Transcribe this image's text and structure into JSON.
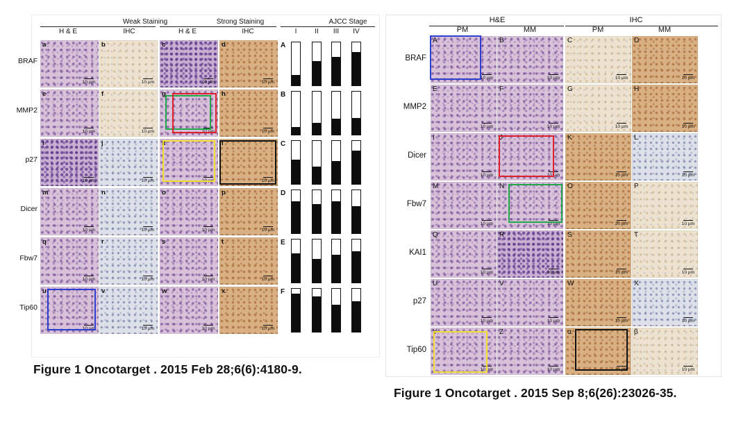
{
  "left_figure": {
    "group_headers": [
      "Weak Staining",
      "Strong Staining",
      "AJCC Stage"
    ],
    "sub_headers": [
      "H & E",
      "IHC",
      "H & E",
      "IHC"
    ],
    "stage_headers": [
      "I",
      "II",
      "III",
      "IV"
    ],
    "rows": [
      {
        "label": "BRAF",
        "letters": [
          "a",
          "b",
          "c",
          "d"
        ],
        "bar_letter": "A"
      },
      {
        "label": "MMP2",
        "letters": [
          "e",
          "f",
          "g",
          "h"
        ],
        "bar_letter": "B"
      },
      {
        "label": "p27",
        "letters": [
          "i",
          "j",
          "k",
          "l"
        ],
        "bar_letter": "C"
      },
      {
        "label": "Dicer",
        "letters": [
          "m",
          "n",
          "o",
          "p"
        ],
        "bar_letter": "D"
      },
      {
        "label": "Fbw7",
        "letters": [
          "q",
          "r",
          "s",
          "t"
        ],
        "bar_letter": "E"
      },
      {
        "label": "Tip60",
        "letters": [
          "u",
          "v",
          "w",
          "x"
        ],
        "bar_letter": "F"
      }
    ],
    "scale_label": "10 µm",
    "caption": "Figure 1 Oncotarget . 2015 Feb 28;6(6):4180-9."
  },
  "bar_data": {
    "type": "bar",
    "categories": [
      "I",
      "II",
      "III",
      "IV"
    ],
    "series": [
      {
        "name": "A",
        "values": [
          0.24,
          0.57,
          0.66,
          0.78
        ]
      },
      {
        "name": "B",
        "values": [
          0.18,
          0.28,
          0.37,
          0.38
        ]
      },
      {
        "name": "C",
        "values": [
          0.57,
          0.41,
          0.54,
          0.77
        ]
      },
      {
        "name": "D",
        "values": [
          0.74,
          0.68,
          0.74,
          0.63
        ]
      },
      {
        "name": "E",
        "values": [
          0.68,
          0.55,
          0.65,
          0.73
        ]
      },
      {
        "name": "F",
        "values": [
          0.88,
          0.82,
          0.63,
          0.71
        ]
      }
    ],
    "ylim": [
      0,
      1
    ]
  },
  "right_figure": {
    "group_headers": [
      "H&E",
      "IHC"
    ],
    "sub_headers": [
      "PM",
      "MM",
      "PM",
      "MM"
    ],
    "rows": [
      {
        "label": "BRAF",
        "letters": [
          "A",
          "B",
          "C",
          "D"
        ]
      },
      {
        "label": "MMP2",
        "letters": [
          "E",
          "F",
          "G",
          "H"
        ]
      },
      {
        "label": "Dicer",
        "letters": [
          "I",
          "J",
          "K",
          "L"
        ]
      },
      {
        "label": "Fbw7",
        "letters": [
          "M",
          "N",
          "O",
          "P"
        ]
      },
      {
        "label": "KAI1",
        "letters": [
          "Q",
          "R",
          "S",
          "T"
        ]
      },
      {
        "label": "p27",
        "letters": [
          "U",
          "V",
          "W",
          "X"
        ]
      },
      {
        "label": "Tip60",
        "letters": [
          "Y",
          "Z",
          "α",
          "β"
        ]
      }
    ],
    "scale_label": "10 µm",
    "scale_label_alt": "20 µm",
    "caption": "Figure 1 Oncotarget . 2015 Sep 8;6(26):23026-35."
  },
  "colors": {
    "highlight_blue": "#2d3fd0",
    "highlight_red": "#e0202a",
    "highlight_green": "#22a84a",
    "highlight_yellow": "#f2dc2e",
    "highlight_black": "#111111"
  }
}
